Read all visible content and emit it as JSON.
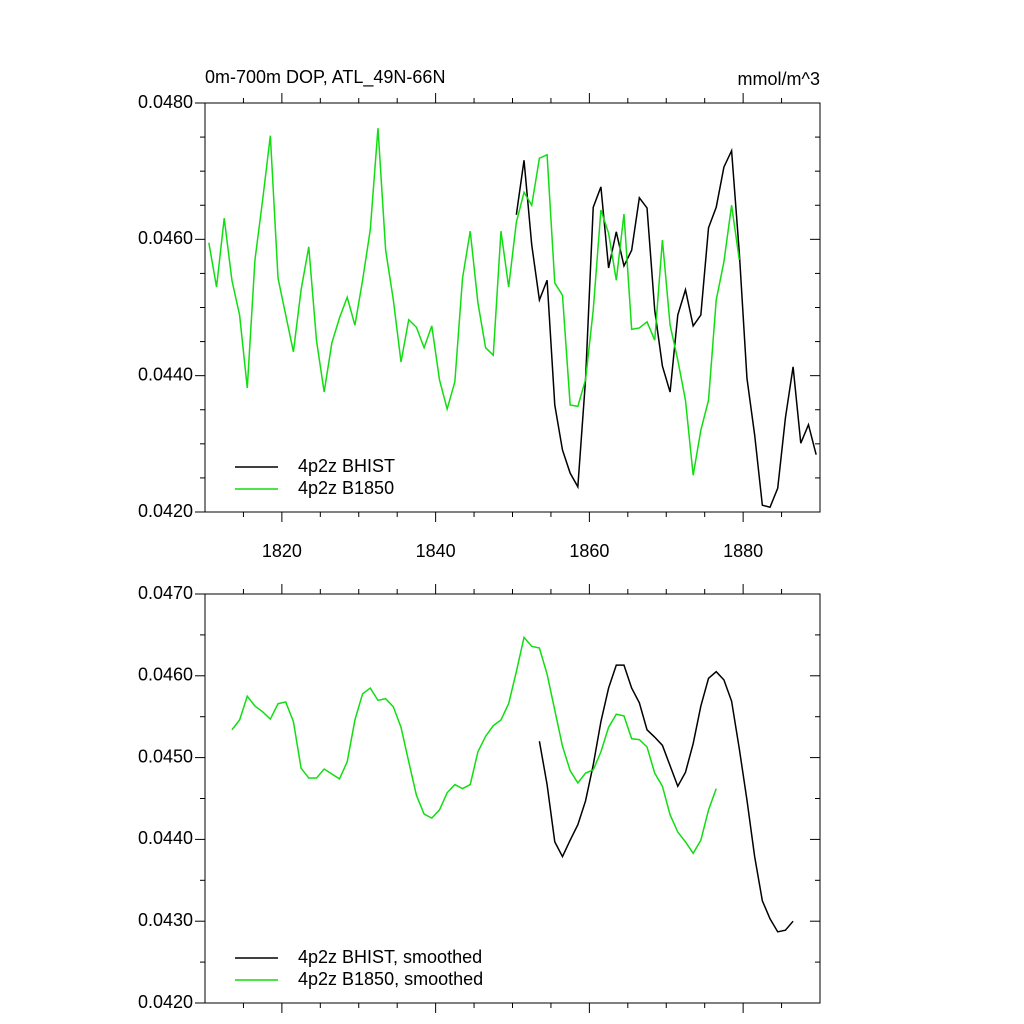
{
  "chart_data": [
    {
      "type": "line",
      "title": "0m-700m DOP, ATL_49N-66N",
      "units": "mmol/m^3",
      "xlim": [
        1810,
        1890
      ],
      "xticks": [
        1820,
        1840,
        1860,
        1880
      ],
      "xminorticks": [
        1815,
        1825,
        1830,
        1835,
        1845,
        1850,
        1855,
        1865,
        1870,
        1875,
        1885
      ],
      "xticklabels": true,
      "ylim": [
        0.042,
        0.048
      ],
      "yticks": [
        {
          "value": 0.042,
          "label": "0.0420"
        },
        {
          "value": 0.044,
          "label": "0.0440"
        },
        {
          "value": 0.046,
          "label": "0.0460"
        },
        {
          "value": 0.048,
          "label": "0.0480"
        }
      ],
      "yminorticks": [
        0.0425,
        0.043,
        0.0435,
        0.0445,
        0.045,
        0.0455,
        0.0465,
        0.047,
        0.0475
      ],
      "legend": "lower left",
      "series": [
        {
          "name": "4p2z BHIST",
          "color": "#000000",
          "x": [
            1850.5,
            1851.5,
            1852.5,
            1853.5,
            1854.5,
            1855.5,
            1856.5,
            1857.5,
            1858.5,
            1859.5,
            1860.5,
            1861.5,
            1862.5,
            1863.5,
            1864.5,
            1865.5,
            1866.5,
            1867.5,
            1868.5,
            1869.5,
            1870.5,
            1871.5,
            1872.5,
            1873.5,
            1874.5,
            1875.5,
            1876.5,
            1877.5,
            1878.5,
            1879.5,
            1880.5,
            1881.5,
            1882.5,
            1883.5,
            1884.5,
            1885.5,
            1886.5,
            1887.5,
            1888.5,
            1889.5
          ],
          "values": [
            0.04636,
            0.04716,
            0.04592,
            0.04511,
            0.0454,
            0.04357,
            0.04291,
            0.04257,
            0.04237,
            0.04394,
            0.04647,
            0.04677,
            0.04558,
            0.04611,
            0.04561,
            0.04584,
            0.04661,
            0.04646,
            0.04496,
            0.04414,
            0.04376,
            0.04489,
            0.04526,
            0.04473,
            0.04489,
            0.04617,
            0.04647,
            0.04706,
            0.0473,
            0.04581,
            0.04396,
            0.04313,
            0.0421,
            0.04207,
            0.04235,
            0.04338,
            0.04413,
            0.04301,
            0.04328,
            0.04284
          ]
        },
        {
          "name": "4p2z B1850",
          "color": "#11dd11",
          "x": [
            1810.5,
            1811.5,
            1812.5,
            1813.5,
            1814.5,
            1815.5,
            1816.5,
            1817.5,
            1818.5,
            1819.5,
            1820.5,
            1821.5,
            1822.5,
            1823.5,
            1824.5,
            1825.5,
            1826.5,
            1827.5,
            1828.5,
            1829.5,
            1830.5,
            1831.5,
            1832.5,
            1833.5,
            1834.5,
            1835.5,
            1836.5,
            1837.5,
            1838.5,
            1839.5,
            1840.5,
            1841.5,
            1842.5,
            1843.5,
            1844.5,
            1845.5,
            1846.5,
            1847.5,
            1848.5,
            1849.5,
            1850.5,
            1851.5,
            1852.5,
            1853.5,
            1854.5,
            1855.5,
            1856.5,
            1857.5,
            1858.5,
            1859.5,
            1860.5,
            1861.5,
            1862.5,
            1863.5,
            1864.5,
            1865.5,
            1866.5,
            1867.5,
            1868.5,
            1869.5,
            1870.5,
            1871.5,
            1872.5,
            1873.5,
            1874.5,
            1875.5,
            1876.5,
            1877.5,
            1878.5,
            1879.5
          ],
          "values": [
            0.04595,
            0.0453,
            0.04631,
            0.0454,
            0.04489,
            0.04382,
            0.0457,
            0.04658,
            0.04752,
            0.04543,
            0.04489,
            0.04435,
            0.04526,
            0.04589,
            0.04452,
            0.04376,
            0.04448,
            0.04485,
            0.04515,
            0.04474,
            0.0454,
            0.04614,
            0.04763,
            0.04584,
            0.04511,
            0.0442,
            0.04482,
            0.04471,
            0.04441,
            0.04473,
            0.04394,
            0.04351,
            0.04391,
            0.04543,
            0.04612,
            0.04507,
            0.04441,
            0.0443,
            0.04612,
            0.0453,
            0.04625,
            0.04669,
            0.0465,
            0.04719,
            0.04724,
            0.04536,
            0.04518,
            0.04357,
            0.04355,
            0.04394,
            0.04496,
            0.04643,
            0.04609,
            0.0454,
            0.04637,
            0.04468,
            0.0447,
            0.04479,
            0.04452,
            0.04599,
            0.04474,
            0.04423,
            0.04364,
            0.04254,
            0.0432,
            0.04364,
            0.04511,
            0.04567,
            0.0465,
            0.0457
          ]
        }
      ]
    },
    {
      "type": "line",
      "xlim": [
        1810,
        1890
      ],
      "xticks": [
        1820,
        1840,
        1860,
        1880
      ],
      "xminorticks": [
        1815,
        1825,
        1830,
        1835,
        1845,
        1850,
        1855,
        1865,
        1870,
        1875,
        1885
      ],
      "xticklabels": false,
      "ylim": [
        0.042,
        0.047
      ],
      "yticks": [
        {
          "value": 0.042,
          "label": "0.0420"
        },
        {
          "value": 0.043,
          "label": "0.0430"
        },
        {
          "value": 0.044,
          "label": "0.0440"
        },
        {
          "value": 0.045,
          "label": "0.0450"
        },
        {
          "value": 0.046,
          "label": "0.0460"
        },
        {
          "value": 0.047,
          "label": "0.0470"
        }
      ],
      "yminorticks": [
        0.0425,
        0.0435,
        0.0445,
        0.0455,
        0.0465
      ],
      "legend": "lower left",
      "series": [
        {
          "name": "4p2z BHIST, smoothed",
          "color": "#000000",
          "x": [
            1853.5,
            1854.5,
            1855.5,
            1856.5,
            1857.5,
            1858.5,
            1859.5,
            1860.5,
            1861.5,
            1862.5,
            1863.5,
            1864.5,
            1865.5,
            1866.5,
            1867.5,
            1868.5,
            1869.5,
            1870.5,
            1871.5,
            1872.5,
            1873.5,
            1874.5,
            1875.5,
            1876.5,
            1877.5,
            1878.5,
            1879.5,
            1880.5,
            1881.5,
            1882.5,
            1883.5,
            1884.5,
            1885.5,
            1886.5
          ],
          "values": [
            0.0452,
            0.04467,
            0.04397,
            0.04379,
            0.04399,
            0.04418,
            0.04447,
            0.04491,
            0.04544,
            0.04585,
            0.04613,
            0.04613,
            0.04585,
            0.04567,
            0.04534,
            0.04525,
            0.04515,
            0.0449,
            0.04465,
            0.04482,
            0.04517,
            0.04563,
            0.04597,
            0.04605,
            0.04595,
            0.04569,
            0.04511,
            0.04448,
            0.04379,
            0.04325,
            0.04303,
            0.04287,
            0.04289,
            0.043
          ]
        },
        {
          "name": "4p2z B1850, smoothed",
          "color": "#11dd11",
          "x": [
            1813.5,
            1814.5,
            1815.5,
            1816.5,
            1817.5,
            1818.5,
            1819.5,
            1820.5,
            1821.5,
            1822.5,
            1823.5,
            1824.5,
            1825.5,
            1826.5,
            1827.5,
            1828.5,
            1829.5,
            1830.5,
            1831.5,
            1832.5,
            1833.5,
            1834.5,
            1835.5,
            1836.5,
            1837.5,
            1838.5,
            1839.5,
            1840.5,
            1841.5,
            1842.5,
            1843.5,
            1844.5,
            1845.5,
            1846.5,
            1847.5,
            1848.5,
            1849.5,
            1850.5,
            1851.5,
            1852.5,
            1853.5,
            1854.5,
            1855.5,
            1856.5,
            1857.5,
            1858.5,
            1859.5,
            1860.5,
            1861.5,
            1862.5,
            1863.5,
            1864.5,
            1865.5,
            1866.5,
            1867.5,
            1868.5,
            1869.5,
            1870.5,
            1871.5,
            1872.5,
            1873.5,
            1874.5,
            1875.5,
            1876.5
          ],
          "values": [
            0.04534,
            0.04546,
            0.04575,
            0.04563,
            0.04556,
            0.04547,
            0.04566,
            0.04568,
            0.04544,
            0.04487,
            0.04475,
            0.04475,
            0.04486,
            0.0448,
            0.04474,
            0.04495,
            0.04546,
            0.04578,
            0.04585,
            0.0457,
            0.04572,
            0.04562,
            0.04537,
            0.04495,
            0.04454,
            0.04431,
            0.04426,
            0.04436,
            0.04457,
            0.04467,
            0.04462,
            0.04467,
            0.04507,
            0.04526,
            0.04539,
            0.04546,
            0.04566,
            0.04605,
            0.04647,
            0.04636,
            0.04634,
            0.04602,
            0.04558,
            0.04514,
            0.04484,
            0.04469,
            0.04481,
            0.04485,
            0.04507,
            0.04537,
            0.04553,
            0.04551,
            0.04523,
            0.04522,
            0.04513,
            0.04481,
            0.04465,
            0.0443,
            0.04409,
            0.04397,
            0.04383,
            0.04399,
            0.04436,
            0.04462
          ]
        }
      ]
    }
  ]
}
